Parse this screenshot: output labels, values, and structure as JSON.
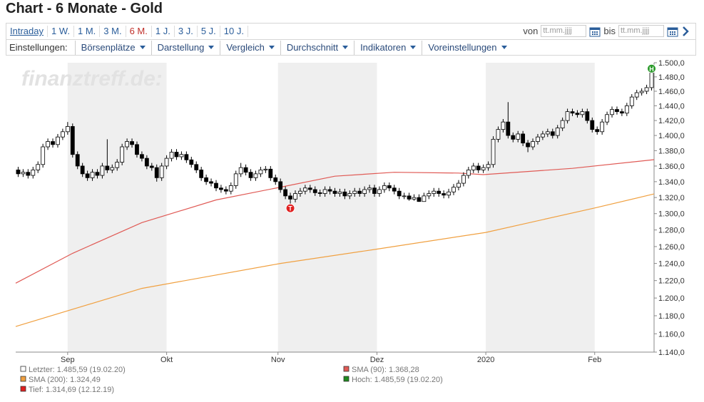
{
  "header": {
    "title": "Chart - 6 Monate - Gold"
  },
  "toolbar": {
    "periods": [
      "Intraday",
      "1 W.",
      "1 M.",
      "3 M.",
      "6 M.",
      "1 J.",
      "3 J.",
      "5 J.",
      "10 J."
    ],
    "selected_period_index": 4,
    "from_label": "von",
    "to_label": "bis",
    "date_placeholder": "tt.mm.jjjj",
    "settings_label": "Einstellungen:",
    "menus": [
      "Börsenplätze",
      "Darstellung",
      "Vergleich",
      "Durchschnitt",
      "Indikatoren",
      "Voreinstellungen"
    ]
  },
  "chart_data": {
    "type": "candlestick",
    "watermark": "finanztreff.de:",
    "up_color": "#ffffff",
    "down_color": "#000000",
    "candles": [
      [
        1355,
        1359,
        1346,
        1350
      ],
      [
        1350,
        1356,
        1346,
        1352
      ],
      [
        1352,
        1356,
        1344,
        1348
      ],
      [
        1348,
        1359,
        1344,
        1355
      ],
      [
        1355,
        1366,
        1351,
        1362
      ],
      [
        1362,
        1389,
        1358,
        1385
      ],
      [
        1385,
        1396,
        1381,
        1392
      ],
      [
        1392,
        1396,
        1384,
        1388
      ],
      [
        1388,
        1402,
        1384,
        1398
      ],
      [
        1398,
        1409,
        1394,
        1405
      ],
      [
        1405,
        1418,
        1401,
        1412
      ],
      [
        1412,
        1416,
        1371,
        1375
      ],
      [
        1375,
        1379,
        1356,
        1360
      ],
      [
        1360,
        1364,
        1346,
        1350
      ],
      [
        1350,
        1354,
        1341,
        1345
      ],
      [
        1345,
        1356,
        1341,
        1352
      ],
      [
        1352,
        1356,
        1344,
        1348
      ],
      [
        1348,
        1364,
        1344,
        1360
      ],
      [
        1360,
        1395,
        1351,
        1355
      ],
      [
        1355,
        1362,
        1351,
        1358
      ],
      [
        1358,
        1369,
        1354,
        1365
      ],
      [
        1365,
        1389,
        1361,
        1385
      ],
      [
        1385,
        1396,
        1381,
        1392
      ],
      [
        1392,
        1396,
        1384,
        1388
      ],
      [
        1388,
        1392,
        1371,
        1375
      ],
      [
        1375,
        1379,
        1366,
        1370
      ],
      [
        1370,
        1374,
        1356,
        1360
      ],
      [
        1360,
        1364,
        1354,
        1358
      ],
      [
        1358,
        1362,
        1340,
        1345
      ],
      [
        1345,
        1364,
        1341,
        1360
      ],
      [
        1360,
        1374,
        1356,
        1370
      ],
      [
        1370,
        1382,
        1366,
        1378
      ],
      [
        1378,
        1382,
        1368,
        1372
      ],
      [
        1372,
        1379,
        1368,
        1375
      ],
      [
        1375,
        1379,
        1364,
        1368
      ],
      [
        1368,
        1372,
        1358,
        1362
      ],
      [
        1362,
        1366,
        1351,
        1355
      ],
      [
        1355,
        1359,
        1341,
        1345
      ],
      [
        1345,
        1349,
        1336,
        1340
      ],
      [
        1340,
        1344,
        1334,
        1338
      ],
      [
        1338,
        1342,
        1328,
        1332
      ],
      [
        1332,
        1336,
        1326,
        1330
      ],
      [
        1330,
        1334,
        1324,
        1328
      ],
      [
        1328,
        1339,
        1324,
        1335
      ],
      [
        1335,
        1354,
        1331,
        1350
      ],
      [
        1350,
        1364,
        1346,
        1358
      ],
      [
        1358,
        1362,
        1348,
        1352
      ],
      [
        1352,
        1356,
        1341,
        1345
      ],
      [
        1345,
        1354,
        1341,
        1350
      ],
      [
        1350,
        1359,
        1346,
        1355
      ],
      [
        1355,
        1360,
        1351,
        1356
      ],
      [
        1356,
        1360,
        1341,
        1345
      ],
      [
        1345,
        1349,
        1336,
        1340
      ],
      [
        1340,
        1344,
        1326,
        1330
      ],
      [
        1330,
        1334,
        1318,
        1322
      ],
      [
        1322,
        1326,
        1312,
        1318
      ],
      [
        1318,
        1329,
        1314,
        1325
      ],
      [
        1325,
        1332,
        1321,
        1328
      ],
      [
        1328,
        1336,
        1324,
        1332
      ],
      [
        1332,
        1336,
        1326,
        1330
      ],
      [
        1330,
        1334,
        1322,
        1326
      ],
      [
        1326,
        1330,
        1321,
        1325
      ],
      [
        1325,
        1334,
        1321,
        1330
      ],
      [
        1330,
        1334,
        1324,
        1328
      ],
      [
        1328,
        1332,
        1321,
        1325
      ],
      [
        1325,
        1331,
        1321,
        1327
      ],
      [
        1327,
        1331,
        1318,
        1322
      ],
      [
        1322,
        1329,
        1318,
        1325
      ],
      [
        1325,
        1332,
        1321,
        1328
      ],
      [
        1328,
        1332,
        1321,
        1325
      ],
      [
        1325,
        1334,
        1321,
        1330
      ],
      [
        1330,
        1336,
        1326,
        1332
      ],
      [
        1332,
        1336,
        1321,
        1325
      ],
      [
        1325,
        1334,
        1321,
        1330
      ],
      [
        1330,
        1339,
        1326,
        1335
      ],
      [
        1335,
        1339,
        1328,
        1332
      ],
      [
        1332,
        1336,
        1324,
        1328
      ],
      [
        1328,
        1332,
        1318,
        1322
      ],
      [
        1322,
        1326,
        1318,
        1322
      ],
      [
        1322,
        1326,
        1316,
        1318
      ],
      [
        1318,
        1324,
        1316,
        1320
      ],
      [
        1320,
        1324,
        1314.69,
        1315
      ],
      [
        1315,
        1326,
        1315,
        1322
      ],
      [
        1322,
        1329,
        1318,
        1325
      ],
      [
        1325,
        1332,
        1321,
        1328
      ],
      [
        1328,
        1332,
        1321,
        1325
      ],
      [
        1325,
        1329,
        1319,
        1323
      ],
      [
        1323,
        1331,
        1319,
        1327
      ],
      [
        1327,
        1337,
        1323,
        1333
      ],
      [
        1333,
        1342,
        1329,
        1338
      ],
      [
        1338,
        1352,
        1334,
        1348
      ],
      [
        1348,
        1359,
        1344,
        1355
      ],
      [
        1355,
        1364,
        1351,
        1360
      ],
      [
        1360,
        1364,
        1351,
        1355
      ],
      [
        1355,
        1362,
        1351,
        1358
      ],
      [
        1358,
        1366,
        1354,
        1362
      ],
      [
        1362,
        1399,
        1358,
        1395
      ],
      [
        1395,
        1412,
        1391,
        1408
      ],
      [
        1408,
        1422,
        1404,
        1418
      ],
      [
        1418,
        1445,
        1396,
        1400
      ],
      [
        1400,
        1404,
        1391,
        1395
      ],
      [
        1395,
        1406,
        1391,
        1402
      ],
      [
        1402,
        1406,
        1386,
        1390
      ],
      [
        1390,
        1394,
        1378,
        1385
      ],
      [
        1385,
        1396,
        1381,
        1392
      ],
      [
        1392,
        1402,
        1388,
        1398
      ],
      [
        1398,
        1406,
        1394,
        1402
      ],
      [
        1402,
        1409,
        1398,
        1405
      ],
      [
        1405,
        1409,
        1396,
        1400
      ],
      [
        1400,
        1414,
        1396,
        1410
      ],
      [
        1410,
        1424,
        1406,
        1420
      ],
      [
        1420,
        1436,
        1416,
        1432
      ],
      [
        1432,
        1436,
        1426,
        1430
      ],
      [
        1430,
        1434,
        1424,
        1428
      ],
      [
        1428,
        1436,
        1424,
        1432
      ],
      [
        1432,
        1436,
        1416,
        1420
      ],
      [
        1420,
        1424,
        1404,
        1408
      ],
      [
        1408,
        1412,
        1401,
        1405
      ],
      [
        1405,
        1422,
        1401,
        1418
      ],
      [
        1418,
        1432,
        1414,
        1428
      ],
      [
        1428,
        1439,
        1424,
        1435
      ],
      [
        1435,
        1439,
        1428,
        1432
      ],
      [
        1432,
        1436,
        1426,
        1430
      ],
      [
        1430,
        1444,
        1426,
        1440
      ],
      [
        1440,
        1456,
        1436,
        1452
      ],
      [
        1452,
        1462,
        1448,
        1458
      ],
      [
        1458,
        1464,
        1454,
        1460
      ],
      [
        1460,
        1469,
        1456,
        1465
      ],
      [
        1465,
        1485.59,
        1461,
        1485.59
      ]
    ],
    "series": [
      {
        "name": "SMA (90): 1.368,28",
        "color": "#e05a55",
        "x": [
          -0.5,
          11,
          25,
          40,
          53,
          64,
          76,
          89,
          94,
          112,
          128.5
        ],
        "values": [
          1217,
          1252,
          1289,
          1317,
          1333,
          1347,
          1352,
          1351,
          1349,
          1357,
          1368.28
        ]
      },
      {
        "name": "SMA (200): 1.324,49",
        "color": "#f0a040",
        "x": [
          -0.5,
          25,
          53,
          72.5,
          94.5,
          116.5,
          128.5
        ],
        "values": [
          1168,
          1211,
          1240,
          1257,
          1277,
          1307,
          1324.49
        ]
      }
    ],
    "legend": [
      {
        "label": "Letzter: 1.485,59 (19.02.20)",
        "color": "#ffffff"
      },
      {
        "label": "Tief: 1.314,69 (12.12.19)",
        "color": "#e02020"
      },
      {
        "label": "Hoch: 1.485,59 (19.02.20)",
        "color": "#1f8a1f"
      }
    ],
    "high_marker": {
      "label": "H",
      "color": "#2a9a2a"
    },
    "low_marker": {
      "label": "T",
      "color": "#e02020"
    },
    "xlim": [
      -0.5,
      128.5
    ],
    "xticks": [
      {
        "value": 10,
        "label": "Sep"
      },
      {
        "value": 30,
        "label": "Okt"
      },
      {
        "value": 52.5,
        "label": "Nov"
      },
      {
        "value": 72.5,
        "label": "Dez"
      },
      {
        "value": 94.5,
        "label": "2020"
      },
      {
        "value": 116.5,
        "label": "Feb"
      }
    ],
    "log_scale": true,
    "ylim": [
      1140,
      1500
    ],
    "yticks": [
      {
        "value": 1140,
        "label": "1.140,0"
      },
      {
        "value": 1160,
        "label": "1.160,0"
      },
      {
        "value": 1180,
        "label": "1.180,0"
      },
      {
        "value": 1200,
        "label": "1.200,0"
      },
      {
        "value": 1220,
        "label": "1.220,0"
      },
      {
        "value": 1240,
        "label": "1.240,0"
      },
      {
        "value": 1260,
        "label": "1.260,0"
      },
      {
        "value": 1280,
        "label": "1.280,0"
      },
      {
        "value": 1300,
        "label": "1.300,0"
      },
      {
        "value": 1320,
        "label": "1.320,0"
      },
      {
        "value": 1340,
        "label": "1.340,0"
      },
      {
        "value": 1360,
        "label": "1.360,0"
      },
      {
        "value": 1380,
        "label": "1.380,0"
      },
      {
        "value": 1400,
        "label": "1.400,0"
      },
      {
        "value": 1420,
        "label": "1.420,0"
      },
      {
        "value": 1440,
        "label": "1.440,0"
      },
      {
        "value": 1460,
        "label": "1.460,0"
      },
      {
        "value": 1480,
        "label": "1.480,0"
      },
      {
        "value": 1500,
        "label": "1.500,0"
      }
    ],
    "shaded_month_bands": true
  }
}
